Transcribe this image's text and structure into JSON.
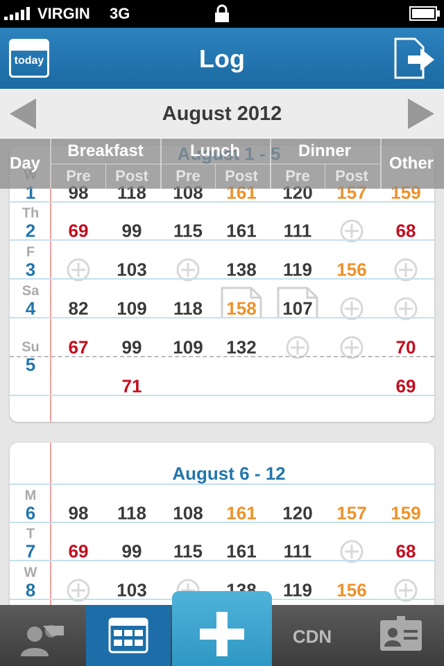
{
  "status_bar": {
    "carrier": "VIRGIN",
    "network": "3G"
  },
  "header": {
    "today_icon": "today",
    "title": "Log"
  },
  "month_nav": {
    "title": "August 2012"
  },
  "columns": {
    "day": "Day",
    "groups": [
      {
        "name": "Breakfast",
        "sub": [
          "Pre",
          "Post"
        ]
      },
      {
        "name": "Lunch",
        "sub": [
          "Pre",
          "Post"
        ]
      },
      {
        "name": "Dinner",
        "sub": [
          "Pre",
          "Post"
        ]
      }
    ],
    "other": "Other"
  },
  "levels": {
    "low": "#c40d1e",
    "high": "#ef9127",
    "normal": "#3a3a3a"
  },
  "weeks": [
    {
      "title": "August 1 - 5",
      "days": [
        {
          "weekday": "W",
          "day": "1",
          "cells": [
            98,
            118,
            108,
            {
              "value": 161,
              "level": "high"
            },
            120,
            {
              "value": 157,
              "level": "high"
            },
            {
              "value": 159,
              "level": "high"
            }
          ]
        },
        {
          "weekday": "Th",
          "day": "2",
          "cells": [
            {
              "value": 69,
              "level": "low"
            },
            99,
            115,
            161,
            111,
            null,
            {
              "value": 68,
              "level": "low"
            }
          ]
        },
        {
          "weekday": "F",
          "day": "3",
          "cells": [
            null,
            103,
            null,
            138,
            119,
            {
              "value": 156,
              "level": "high"
            },
            null
          ]
        },
        {
          "weekday": "Sa",
          "day": "4",
          "cells": [
            82,
            109,
            118,
            {
              "value": 158,
              "level": "high",
              "note": true
            },
            {
              "value": 107,
              "note": true
            },
            null,
            null
          ]
        },
        {
          "weekday": "Su",
          "day": "5",
          "cells": [
            {
              "value": 67,
              "level": "low"
            },
            99,
            109,
            132,
            null,
            null,
            {
              "value": 70,
              "level": "low"
            }
          ],
          "extra_rows": [
            [
              null,
              {
                "value": 71,
                "level": "low"
              },
              null,
              null,
              null,
              null,
              {
                "value": 69,
                "level": "low"
              }
            ]
          ]
        }
      ]
    },
    {
      "title": "August 6 - 12",
      "days": [
        {
          "weekday": "M",
          "day": "6",
          "cells": [
            98,
            118,
            108,
            {
              "value": 161,
              "level": "high"
            },
            120,
            {
              "value": 157,
              "level": "high"
            },
            {
              "value": 159,
              "level": "high"
            }
          ]
        },
        {
          "weekday": "T",
          "day": "7",
          "cells": [
            {
              "value": 69,
              "level": "low"
            },
            99,
            115,
            161,
            111,
            null,
            {
              "value": 68,
              "level": "low"
            }
          ]
        },
        {
          "weekday": "W",
          "day": "8",
          "cells": [
            null,
            103,
            null,
            138,
            119,
            {
              "value": 156,
              "level": "high"
            },
            null
          ]
        }
      ]
    }
  ],
  "tab_bar": {
    "cdn": "CDN"
  }
}
